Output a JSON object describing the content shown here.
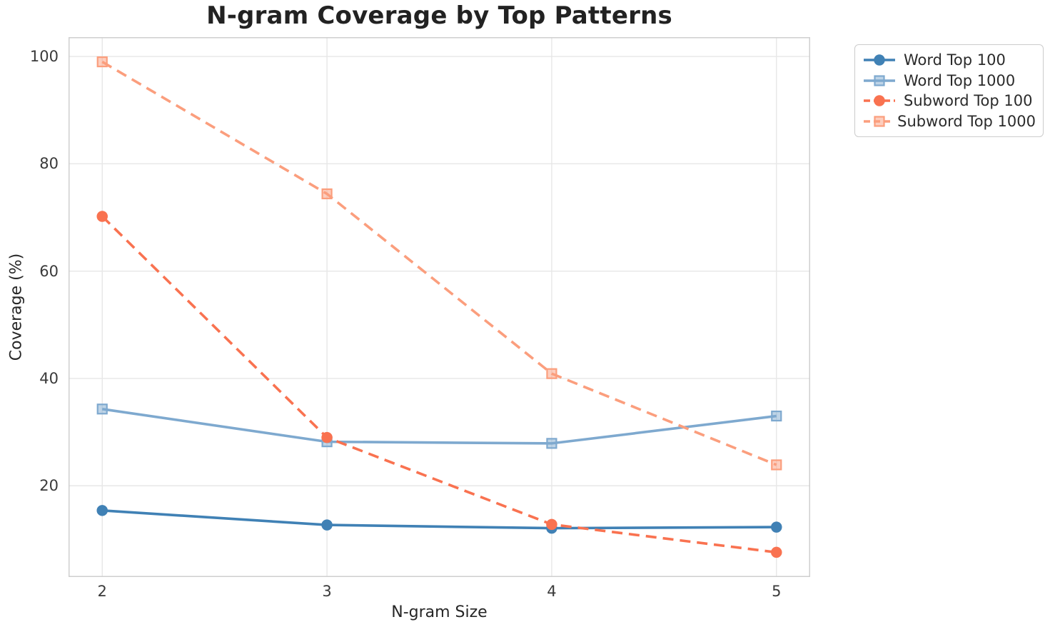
{
  "chart_data": {
    "type": "line",
    "title": "N-gram Coverage by Top Patterns",
    "xlabel": "N-gram Size",
    "ylabel": "Coverage (%)",
    "x": [
      2,
      3,
      4,
      5
    ],
    "x_ticks": [
      2,
      3,
      4,
      5
    ],
    "y_ticks": [
      20,
      40,
      60,
      80,
      100
    ],
    "xlim": [
      1.85,
      5.15
    ],
    "ylim": [
      3.0,
      103.6
    ],
    "grid": true,
    "legend_position": "outside upper right",
    "series": [
      {
        "name": "Word Top 100",
        "values": [
          15.4,
          12.7,
          12.1,
          12.3
        ],
        "color": "#4081b5",
        "marker": "circle",
        "line_style": "solid"
      },
      {
        "name": "Word Top 1000",
        "values": [
          34.3,
          28.2,
          27.9,
          33.0
        ],
        "color": "#7ea9cf",
        "marker": "square",
        "line_style": "solid"
      },
      {
        "name": "Subword Top 100",
        "values": [
          70.2,
          29.0,
          12.8,
          7.6
        ],
        "color": "#f97250",
        "marker": "circle",
        "line_style": "dashed"
      },
      {
        "name": "Subword Top 1000",
        "values": [
          99.0,
          74.4,
          40.9,
          23.9
        ],
        "color": "#fb9e7d",
        "marker": "square",
        "line_style": "dashed"
      }
    ],
    "colors": {
      "grid": "#e7e7e7",
      "spine": "#cfcfcf",
      "title_text": "#222222",
      "tick_text": "#3a3a3a",
      "legend_border": "#cccccc",
      "background": "#ffffff"
    }
  }
}
